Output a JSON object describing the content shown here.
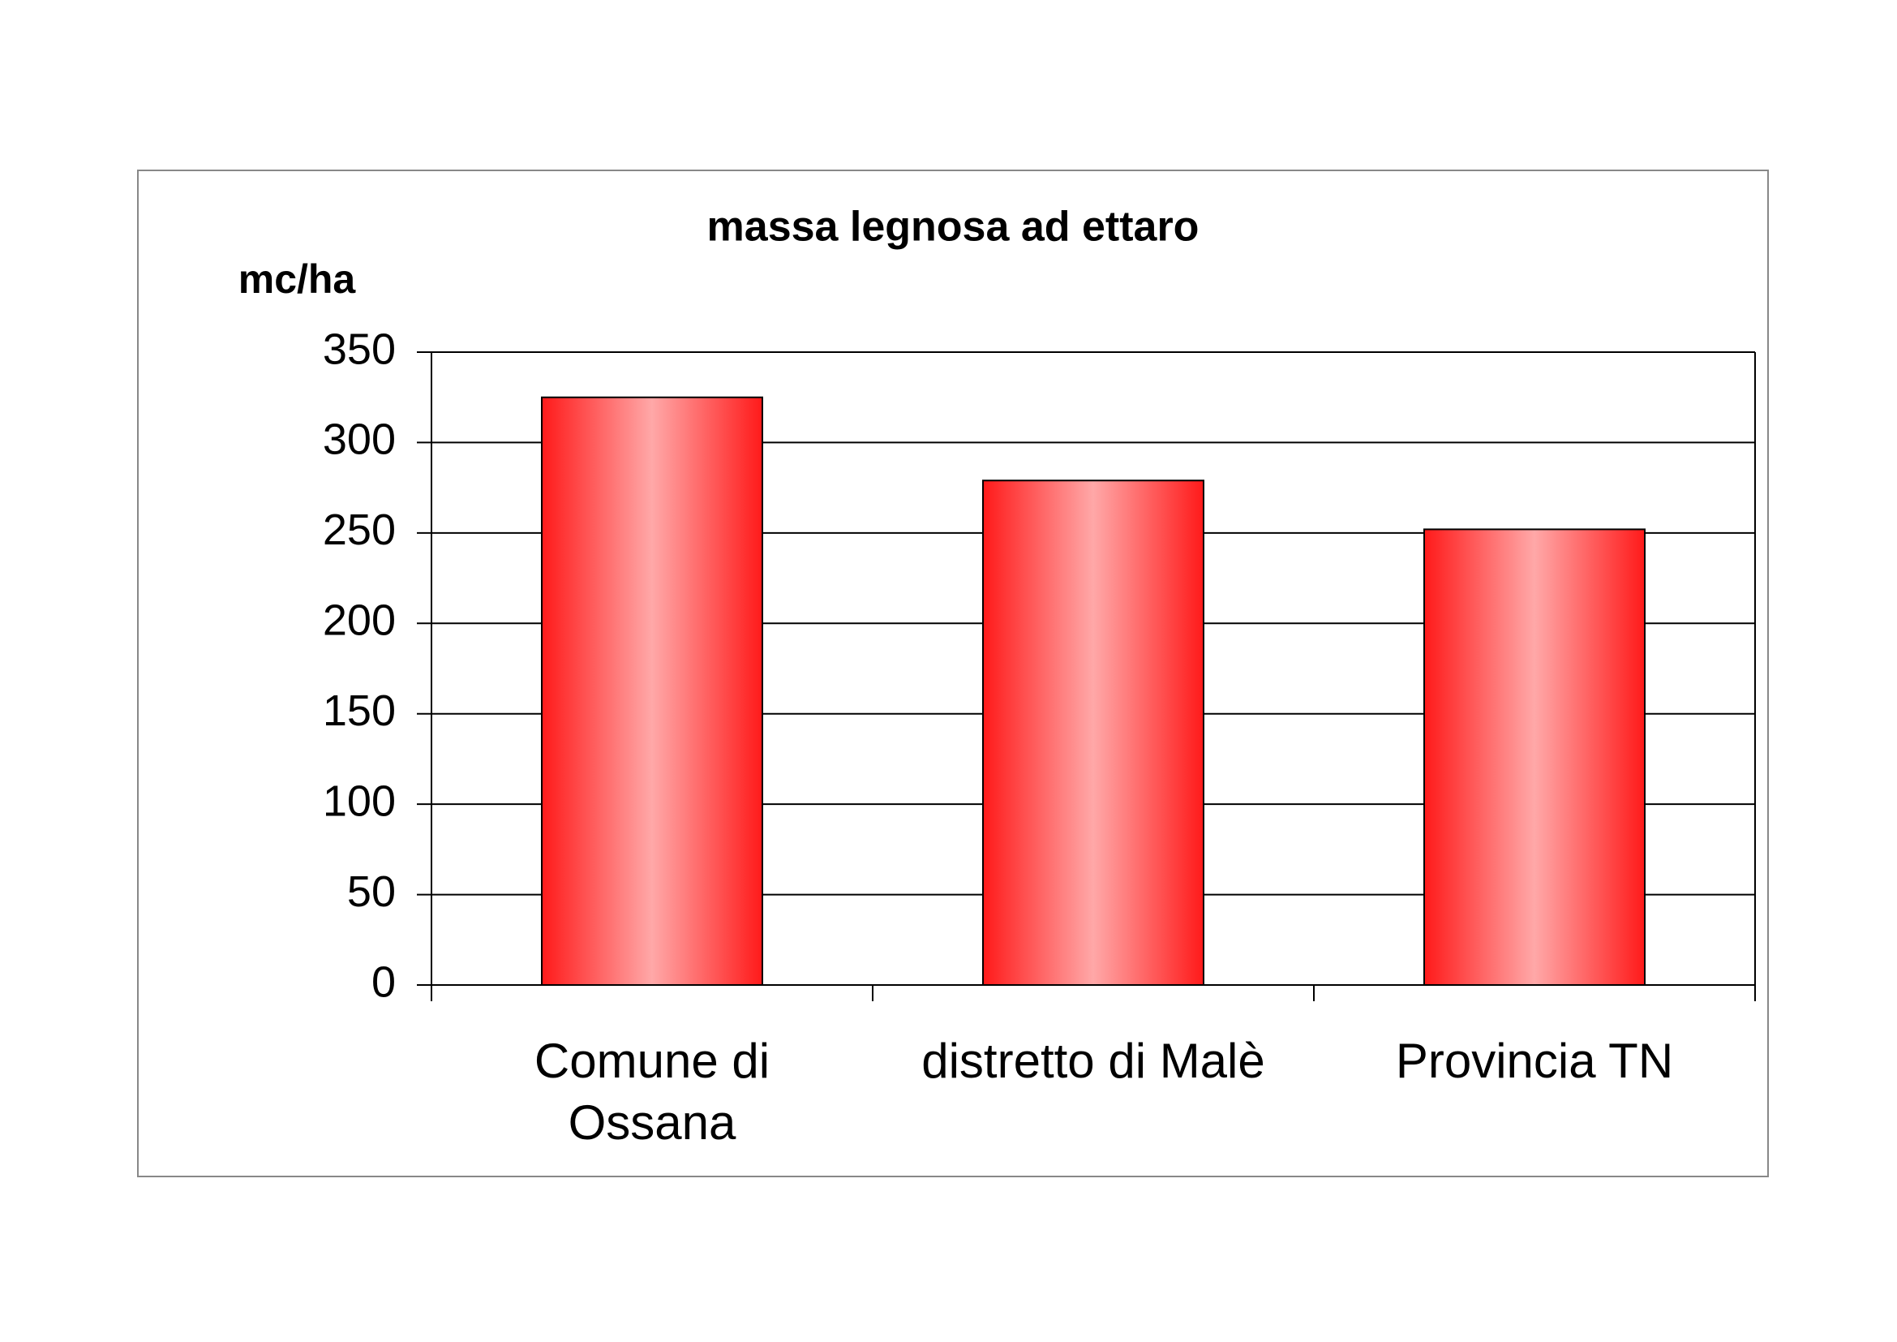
{
  "chart_data": {
    "type": "bar",
    "title": "massa legnosa ad ettaro",
    "y_label": "mc/ha",
    "categories": [
      "Comune di Ossana",
      "distretto di Malè",
      "Provincia TN"
    ],
    "values": [
      325,
      279,
      252
    ],
    "color": "#ff1a1a",
    "ylim": [
      0,
      350
    ],
    "yticks": [
      0,
      50,
      100,
      150,
      200,
      250,
      300,
      350
    ],
    "grid": true
  }
}
